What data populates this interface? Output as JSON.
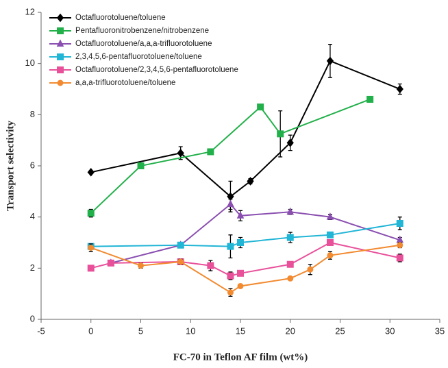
{
  "chart_data": {
    "type": "line",
    "x_label": "FC-70 in Teflon AF film (wt%)",
    "y_label": "Transport selectivity",
    "xlim": [
      -5,
      35
    ],
    "xticks": [
      -5,
      0,
      5,
      10,
      15,
      20,
      25,
      30,
      35
    ],
    "ylim": [
      0,
      12
    ],
    "yticks": [
      0,
      2,
      4,
      6,
      8,
      10,
      12
    ],
    "grid": false,
    "legend": "top-left",
    "series": [
      {
        "name": "Octafluorotoluene/toluene",
        "color": "#000000",
        "marker": "diamond",
        "x": [
          0,
          9,
          14,
          16,
          20,
          24,
          31
        ],
        "values": [
          5.75,
          6.5,
          4.8,
          5.4,
          6.9,
          10.1,
          9.0
        ],
        "errors": [
          0.05,
          0.25,
          0.6,
          0.1,
          0.3,
          0.65,
          0.2
        ]
      },
      {
        "name": "Pentafluoronitrobenzene/nitrobenzene",
        "color": "#22b04a",
        "marker": "square",
        "x": [
          0,
          5,
          12,
          17,
          19,
          28
        ],
        "values": [
          4.15,
          6.0,
          6.55,
          8.3,
          7.25,
          8.6
        ],
        "errors": [
          0.15,
          0,
          0,
          0,
          0.9,
          0
        ]
      },
      {
        "name": "Octafluorotoluene/a,a,a-trifluorotoluene",
        "color": "#8a4fb0",
        "marker": "triangle",
        "x": [
          2,
          9,
          14,
          15,
          20,
          24,
          31
        ],
        "values": [
          2.2,
          2.9,
          4.5,
          4.05,
          4.2,
          4.0,
          3.1
        ],
        "errors": [
          0,
          0.1,
          0.2,
          0.2,
          0.1,
          0.1,
          0.1
        ]
      },
      {
        "name": "2,3,4,5,6-pentafluorotoluene/toluene",
        "color": "#21b5d6",
        "marker": "square",
        "x": [
          0,
          9,
          14,
          15,
          20,
          24,
          31
        ],
        "values": [
          2.85,
          2.9,
          2.85,
          3.0,
          3.2,
          3.3,
          3.75
        ],
        "errors": [
          0.05,
          0.1,
          0.45,
          0.2,
          0.2,
          0,
          0.25
        ]
      },
      {
        "name": "Octafluorotoluene/2,3,4,5,6-pentafluorotoluene",
        "color": "#e8509a",
        "marker": "square",
        "x": [
          0,
          2,
          9,
          12,
          14,
          15,
          20,
          24,
          31
        ],
        "values": [
          2.0,
          2.2,
          2.25,
          2.1,
          1.7,
          1.8,
          2.15,
          3.0,
          2.4
        ],
        "errors": [
          0,
          0,
          0.1,
          0.2,
          0.15,
          0.1,
          0.1,
          0,
          0.15
        ]
      },
      {
        "name": "a,a,a-trifluorotoluene/toluene",
        "color": "#f28a30",
        "marker": "circle",
        "x": [
          0,
          5,
          9,
          14,
          15,
          20,
          22,
          24,
          31
        ],
        "values": [
          2.8,
          2.1,
          2.25,
          1.05,
          1.3,
          1.6,
          1.95,
          2.5,
          2.9
        ],
        "errors": [
          0.15,
          0.1,
          0.1,
          0.15,
          0,
          0,
          0.2,
          0.15,
          0.1
        ]
      }
    ]
  }
}
